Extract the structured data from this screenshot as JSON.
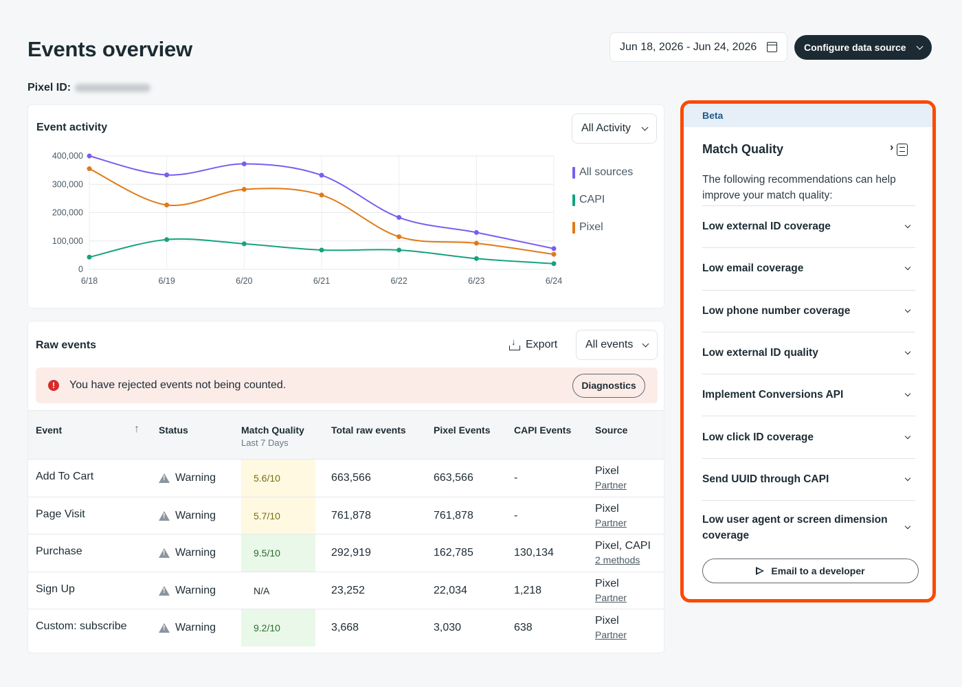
{
  "header": {
    "title": "Events overview",
    "pixel_label": "Pixel ID:",
    "date_range": "Jun 18, 2026 - Jun 24, 2026",
    "config_label": "Configure data source"
  },
  "activity": {
    "title": "Event activity",
    "filter": "All Activity",
    "legend": [
      {
        "name": "All sources",
        "color": "#7b5cf0"
      },
      {
        "name": "CAPI",
        "color": "#14a37f"
      },
      {
        "name": "Pixel",
        "color": "#e07a16"
      }
    ]
  },
  "chart_data": {
    "type": "line",
    "x": [
      "6/18",
      "6/19",
      "6/20",
      "6/21",
      "6/22",
      "6/23",
      "6/24"
    ],
    "ylim": [
      0,
      400000
    ],
    "yticks": [
      "400,000",
      "300,000",
      "200,000",
      "100,000",
      "0"
    ],
    "ytick_values": [
      400000,
      300000,
      200000,
      100000,
      0
    ],
    "grid": true,
    "legend_position": "right",
    "series": [
      {
        "name": "All sources",
        "color": "#7b5cf0",
        "values": [
          400000,
          333000,
          372000,
          332000,
          183000,
          130000,
          73000
        ]
      },
      {
        "name": "Pixel",
        "color": "#e07a16",
        "values": [
          355000,
          227000,
          282000,
          262000,
          115000,
          92000,
          53000
        ]
      },
      {
        "name": "CAPI",
        "color": "#14a37f",
        "values": [
          43000,
          105000,
          90000,
          68000,
          68000,
          38000,
          20000
        ]
      }
    ]
  },
  "raw": {
    "title": "Raw events",
    "export_label": "Export",
    "filter": "All events",
    "alert_text": "You have rejected events not being counted.",
    "alert_icon": "!",
    "diagnostics_label": "Diagnostics",
    "columns": {
      "event": "Event",
      "status": "Status",
      "mq": "Match Quality",
      "mq_sub": "Last 7 Days",
      "total": "Total raw events",
      "pixel": "Pixel Events",
      "capi": "CAPI Events",
      "source": "Source"
    },
    "sort_icon": "↑",
    "rows": [
      {
        "event": "Add To Cart",
        "status": "Warning",
        "mq": "5.6/10",
        "mq_level": "yellow",
        "total": "663,566",
        "pixel": "663,566",
        "capi": "-",
        "source": "Pixel",
        "source_link": "Partner"
      },
      {
        "event": "Page Visit",
        "status": "Warning",
        "mq": "5.7/10",
        "mq_level": "yellow",
        "total": "761,878",
        "pixel": "761,878",
        "capi": "-",
        "source": "Pixel",
        "source_link": "Partner"
      },
      {
        "event": "Purchase",
        "status": "Warning",
        "mq": "9.5/10",
        "mq_level": "green",
        "total": "292,919",
        "pixel": "162,785",
        "capi": "130,134",
        "source": "Pixel, CAPI",
        "source_link": "2 methods"
      },
      {
        "event": "Sign Up",
        "status": "Warning",
        "mq": "N/A",
        "mq_level": "none",
        "total": "23,252",
        "pixel": "22,034",
        "capi": "1,218",
        "source": "Pixel",
        "source_link": "Partner"
      },
      {
        "event": "Custom: subscribe",
        "status": "Warning",
        "mq": "9.2/10",
        "mq_level": "green",
        "total": "3,668",
        "pixel": "3,030",
        "capi": "638",
        "source": "Pixel",
        "source_link": "Partner"
      }
    ]
  },
  "match_quality": {
    "badge": "Beta",
    "title": "Match Quality",
    "description": "The following recommendations can help improve your match quality:",
    "recommendations": [
      "Low external ID coverage",
      "Low email coverage",
      "Low phone number coverage",
      "Low external ID quality",
      "Implement Conversions API",
      "Low click ID coverage",
      "Send UUID through CAPI",
      "Low user agent or screen dimension coverage"
    ],
    "email_button": "Email to a developer",
    "highlight_color": "#fb4a04"
  }
}
